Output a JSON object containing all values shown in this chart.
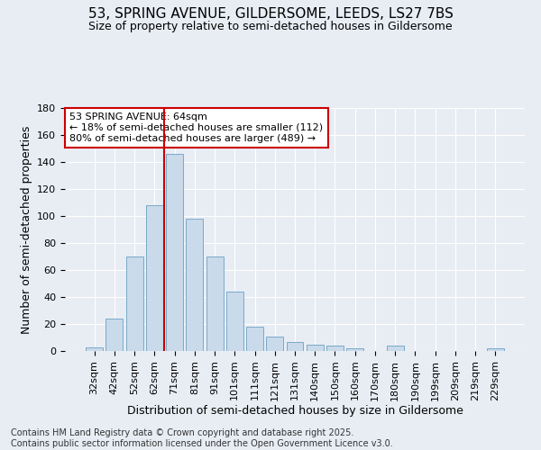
{
  "title_line1": "53, SPRING AVENUE, GILDERSOME, LEEDS, LS27 7BS",
  "title_line2": "Size of property relative to semi-detached houses in Gildersome",
  "xlabel": "Distribution of semi-detached houses by size in Gildersome",
  "ylabel": "Number of semi-detached properties",
  "footnote": "Contains HM Land Registry data © Crown copyright and database right 2025.\nContains public sector information licensed under the Open Government Licence v3.0.",
  "categories": [
    "32sqm",
    "42sqm",
    "52sqm",
    "62sqm",
    "71sqm",
    "81sqm",
    "91sqm",
    "101sqm",
    "111sqm",
    "121sqm",
    "131sqm",
    "140sqm",
    "150sqm",
    "160sqm",
    "170sqm",
    "180sqm",
    "190sqm",
    "199sqm",
    "209sqm",
    "219sqm",
    "229sqm"
  ],
  "values": [
    3,
    24,
    70,
    108,
    146,
    98,
    70,
    44,
    18,
    11,
    7,
    5,
    4,
    2,
    0,
    4,
    0,
    0,
    0,
    0,
    2
  ],
  "bar_color": "#c9daea",
  "bar_edge_color": "#7aaac8",
  "vline_color": "#cc0000",
  "vline_x_index": 3.5,
  "annotation_text": "53 SPRING AVENUE: 64sqm\n← 18% of semi-detached houses are smaller (112)\n80% of semi-detached houses are larger (489) →",
  "annotation_box_color": "white",
  "annotation_box_edge": "#cc0000",
  "ylim": [
    0,
    180
  ],
  "background_color": "#e8edf4",
  "grid_color": "white",
  "title_fontsize": 11,
  "subtitle_fontsize": 9,
  "axis_label_fontsize": 9,
  "tick_fontsize": 8,
  "annotation_fontsize": 8,
  "footnote_fontsize": 7
}
